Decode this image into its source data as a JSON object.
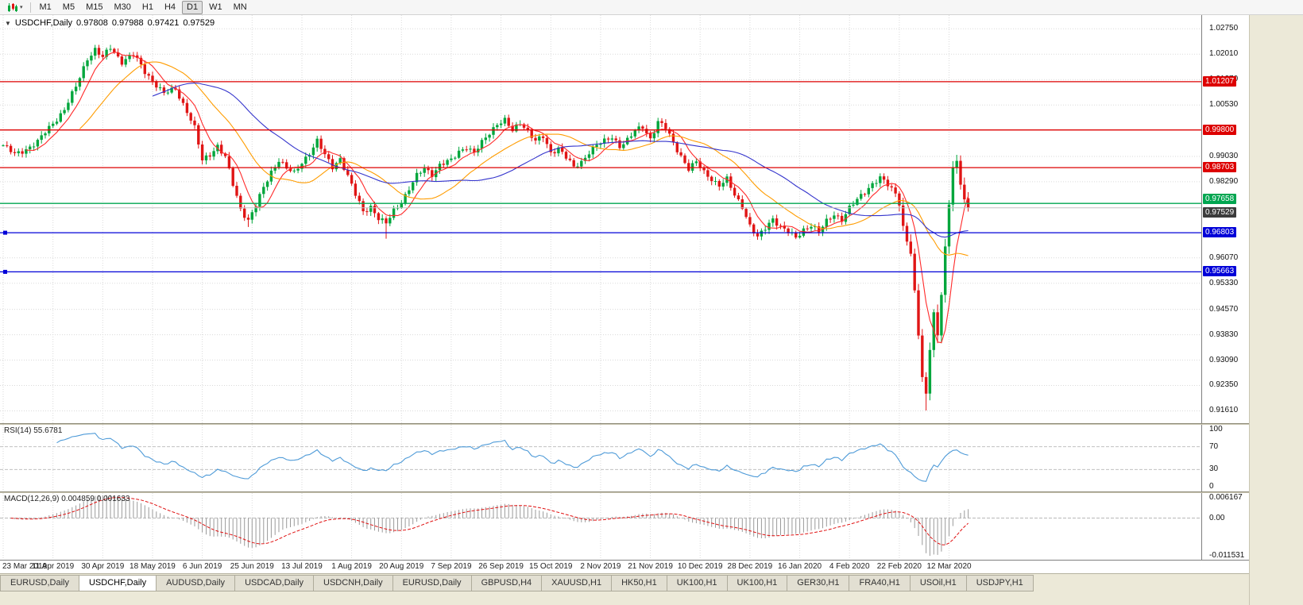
{
  "icons": {
    "dropdown": "▼",
    "caret": "▾"
  },
  "toolbar": {
    "timeframes": [
      {
        "label": "M1",
        "active": false
      },
      {
        "label": "M5",
        "active": false
      },
      {
        "label": "M15",
        "active": false
      },
      {
        "label": "M30",
        "active": false
      },
      {
        "label": "H1",
        "active": false
      },
      {
        "label": "H4",
        "active": false
      },
      {
        "label": "D1",
        "active": true
      },
      {
        "label": "W1",
        "active": false
      },
      {
        "label": "MN",
        "active": false
      }
    ]
  },
  "chart_header": {
    "symbol": "USDCHF,Daily",
    "open": "0.97808",
    "high": "0.97988",
    "low": "0.97421",
    "close": "0.97529"
  },
  "panels": {
    "rsi_label": "RSI(14) 55.6781",
    "macd_label": "MACD(12,26,9) 0.004859 0.001633"
  },
  "tabs": [
    {
      "label": "EURUSD,Daily",
      "active": false
    },
    {
      "label": "USDCHF,Daily",
      "active": true
    },
    {
      "label": "AUDUSD,Daily",
      "active": false
    },
    {
      "label": "USDCAD,Daily",
      "active": false
    },
    {
      "label": "USDCNH,Daily",
      "active": false
    },
    {
      "label": "EURUSD,Daily",
      "active": false
    },
    {
      "label": "GBPUSD,H4",
      "active": false
    },
    {
      "label": "XAUUSD,H1",
      "active": false
    },
    {
      "label": "HK50,H1",
      "active": false
    },
    {
      "label": "UK100,H1",
      "active": false
    },
    {
      "label": "UK100,H1",
      "active": false
    },
    {
      "label": "GER30,H1",
      "active": false
    },
    {
      "label": "FRA40,H1",
      "active": false
    },
    {
      "label": "USOil,H1",
      "active": false
    },
    {
      "label": "USDJPY,H1",
      "active": false
    }
  ],
  "chart_data": [
    {
      "type": "candlestick",
      "title": "USDCHF,Daily",
      "bars": 253,
      "bar_spacing": 4.82,
      "dense_from": 234,
      "y_range": [
        0.9125,
        1.0315
      ],
      "x_tick_every": 13,
      "x_tick_labels": [
        "23 Mar 2019",
        "11 Apr 2019",
        "30 Apr 2019",
        "18 May 2019",
        "6 Jun 2019",
        "25 Jun 2019",
        "13 Jul 2019",
        "1 Aug 2019",
        "20 Aug 2019",
        "7 Sep 2019",
        "26 Sep 2019",
        "15 Oct 2019",
        "2 Nov 2019",
        "21 Nov 2019",
        "10 Dec 2019",
        "28 Dec 2019",
        "16 Jan 2020",
        "4 Feb 2020",
        "22 Feb 2020",
        "12 Mar 2020"
      ],
      "y_ticks": [
        {
          "value": 1.0275,
          "label": "1.02750"
        },
        {
          "value": 1.0201,
          "label": "1.02010"
        },
        {
          "value": 1.0127,
          "label": "1.01270"
        },
        {
          "value": 1.0053,
          "label": "1.00530"
        },
        {
          "value": 0.9903,
          "label": "0.99030"
        },
        {
          "value": 0.9829,
          "label": "0.98290"
        },
        {
          "value": 0.9607,
          "label": "0.96070"
        },
        {
          "value": 0.9533,
          "label": "0.95330"
        },
        {
          "value": 0.9457,
          "label": "0.94570"
        },
        {
          "value": 0.9383,
          "label": "0.93830"
        },
        {
          "value": 0.9309,
          "label": "0.93090"
        },
        {
          "value": 0.9235,
          "label": "0.92350"
        },
        {
          "value": 0.9161,
          "label": "0.91610"
        }
      ],
      "anchor_closes": [
        [
          0,
          0.9935
        ],
        [
          3,
          0.9908
        ],
        [
          6,
          0.9925
        ],
        [
          9,
          0.9945
        ],
        [
          13,
          1.0
        ],
        [
          16,
          1.004
        ],
        [
          19,
          1.0105
        ],
        [
          22,
          1.019
        ],
        [
          24,
          1.0215
        ],
        [
          26,
          1.019
        ],
        [
          28,
          1.022
        ],
        [
          31,
          1.018
        ],
        [
          34,
          1.02
        ],
        [
          37,
          1.015
        ],
        [
          39,
          1.0125
        ],
        [
          42,
          1.0085
        ],
        [
          45,
          1.01
        ],
        [
          48,
          1.0035
        ],
        [
          50,
          0.9985
        ],
        [
          52,
          0.989
        ],
        [
          54,
          0.991
        ],
        [
          56,
          0.9935
        ],
        [
          58,
          0.99
        ],
        [
          60,
          0.982
        ],
        [
          62,
          0.975
        ],
        [
          64,
          0.9718
        ],
        [
          66,
          0.976
        ],
        [
          68,
          0.981
        ],
        [
          70,
          0.9858
        ],
        [
          72,
          0.9895
        ],
        [
          74,
          0.9868
        ],
        [
          76,
          0.9852
        ],
        [
          78,
          0.9885
        ],
        [
          80,
          0.9915
        ],
        [
          82,
          0.9948
        ],
        [
          84,
          0.9905
        ],
        [
          86,
          0.9872
        ],
        [
          88,
          0.9898
        ],
        [
          90,
          0.9845
        ],
        [
          92,
          0.979
        ],
        [
          94,
          0.9742
        ],
        [
          96,
          0.9758
        ],
        [
          98,
          0.9722
        ],
        [
          100,
          0.9705
        ],
        [
          102,
          0.9745
        ],
        [
          104,
          0.9772
        ],
        [
          106,
          0.9808
        ],
        [
          108,
          0.9845
        ],
        [
          110,
          0.9868
        ],
        [
          112,
          0.9852
        ],
        [
          114,
          0.9878
        ],
        [
          117,
          0.989
        ],
        [
          119,
          0.9918
        ],
        [
          121,
          0.9932
        ],
        [
          123,
          0.9912
        ],
        [
          125,
          0.9942
        ],
        [
          127,
          0.9972
        ],
        [
          129,
          1.0
        ],
        [
          131,
          1.0008
        ],
        [
          133,
          0.9975
        ],
        [
          135,
          1.0002
        ],
        [
          137,
          0.998
        ],
        [
          139,
          0.9948
        ],
        [
          141,
          0.9958
        ],
        [
          143,
          0.9912
        ],
        [
          145,
          0.993
        ],
        [
          147,
          0.9902
        ],
        [
          149,
          0.9868
        ],
        [
          151,
          0.9885
        ],
        [
          153,
          0.9918
        ],
        [
          155,
          0.9938
        ],
        [
          157,
          0.9945
        ],
        [
          159,
          0.9958
        ],
        [
          161,
          0.9935
        ],
        [
          163,
          0.9952
        ],
        [
          165,
          0.9975
        ],
        [
          167,
          0.9988
        ],
        [
          169,
          0.9955
        ],
        [
          171,
          1.0005
        ],
        [
          173,
          0.9985
        ],
        [
          175,
          0.994
        ],
        [
          177,
          0.9905
        ],
        [
          179,
          0.9868
        ],
        [
          181,
          0.9885
        ],
        [
          183,
          0.9855
        ],
        [
          185,
          0.9838
        ],
        [
          187,
          0.982
        ],
        [
          189,
          0.9835
        ],
        [
          191,
          0.9788
        ],
        [
          193,
          0.9758
        ],
        [
          195,
          0.9702
        ],
        [
          197,
          0.9665
        ],
        [
          199,
          0.9692
        ],
        [
          201,
          0.9722
        ],
        [
          203,
          0.97
        ],
        [
          205,
          0.9682
        ],
        [
          207,
          0.9663
        ],
        [
          209,
          0.969
        ],
        [
          211,
          0.9705
        ],
        [
          213,
          0.9682
        ],
        [
          215,
          0.9712
        ],
        [
          217,
          0.9735
        ],
        [
          219,
          0.972
        ],
        [
          221,
          0.9752
        ],
        [
          223,
          0.9775
        ],
        [
          225,
          0.98
        ],
        [
          227,
          0.9825
        ],
        [
          229,
          0.984
        ],
        [
          231,
          0.9818
        ],
        [
          233,
          0.9795
        ],
        [
          234,
          0.9762
        ],
        [
          235,
          0.97
        ],
        [
          236,
          0.9655
        ],
        [
          237,
          0.962
        ],
        [
          238,
          0.951
        ],
        [
          239,
          0.938
        ],
        [
          240,
          0.926
        ],
        [
          241,
          0.921
        ],
        [
          242,
          0.934
        ],
        [
          243,
          0.945
        ],
        [
          244,
          0.938
        ],
        [
          245,
          0.95
        ],
        [
          246,
          0.964
        ],
        [
          247,
          0.976
        ],
        [
          248,
          0.987
        ],
        [
          249,
          0.989
        ],
        [
          250,
          0.982
        ],
        [
          251,
          0.978
        ],
        [
          252,
          0.97529
        ]
      ],
      "last_bar": {
        "open": 0.97808,
        "high": 0.97988,
        "low": 0.97421,
        "close": 0.97529
      },
      "wick_overrides": [
        {
          "index": 241,
          "type": "low",
          "value": 0.9162
        },
        {
          "index": 249,
          "type": "high",
          "value": 0.9901
        },
        {
          "index": 100,
          "type": "low",
          "value": 0.9663
        },
        {
          "index": 64,
          "type": "low",
          "value": 0.9697
        }
      ],
      "ma": [
        {
          "period": 7,
          "color": "#ff2a2a"
        },
        {
          "period": 21,
          "color": "#ff9c00"
        },
        {
          "period": 40,
          "color": "#3333cc"
        }
      ],
      "h_lines": [
        {
          "value": 1.01207,
          "label": "1.01207",
          "color": "#dd0000",
          "badge_dy": -7,
          "handles": false
        },
        {
          "value": 0.998,
          "label": "0.99800",
          "color": "#dd0000",
          "badge_dy": -7,
          "handles": false
        },
        {
          "value": 0.98703,
          "label": "0.98703",
          "color": "#dd0000",
          "badge_dy": -7,
          "handles": false
        },
        {
          "value": 0.97658,
          "label": "0.97658",
          "color": "#00a650",
          "badge_dy": -12,
          "handles": false
        },
        {
          "value": 0.96803,
          "label": "0.96803",
          "color": "#0000d8",
          "badge_dy": -7,
          "handles": true
        },
        {
          "value": 0.95663,
          "label": "0.95663",
          "color": "#0000d8",
          "badge_dy": -7,
          "handles": true
        }
      ],
      "current_price": {
        "value": 0.97529,
        "label": "0.97529",
        "line_color": "#c0c0c0",
        "badge_color": "#3c3c3c",
        "badge_dy": -1
      },
      "colors": {
        "up": "#00a63c",
        "down": "#e01515",
        "grid": "#dadada"
      }
    },
    {
      "type": "line",
      "name": "RSI",
      "period": 14,
      "current_value": "55.6781",
      "color": "#4f9bd8",
      "y_range": [
        0,
        100
      ],
      "levels": [
        {
          "value": 70
        },
        {
          "value": 30
        }
      ],
      "axis_ticks": [
        {
          "value": 100,
          "label": "100"
        },
        {
          "value": 70,
          "label": "70"
        },
        {
          "value": 30,
          "label": "30"
        },
        {
          "value": 0,
          "label": "0"
        }
      ],
      "derived": "RSI(14) of candlestick closes"
    },
    {
      "type": "macd-histogram",
      "name": "MACD",
      "periods": [
        12,
        26,
        9
      ],
      "current_values": [
        "0.004859",
        "0.001633"
      ],
      "colors": {
        "histogram": "#9a9a9a",
        "signal": "#e01010"
      },
      "y_range": [
        -0.0125,
        0.0075
      ],
      "axis_ticks": [
        {
          "value": 0.006167,
          "label": "0.006167"
        },
        {
          "value": 0,
          "label": "0.00"
        },
        {
          "value": -0.011531,
          "label": "-0.011531"
        }
      ],
      "derived": "MACD(12,26,9) of candlestick closes"
    }
  ]
}
